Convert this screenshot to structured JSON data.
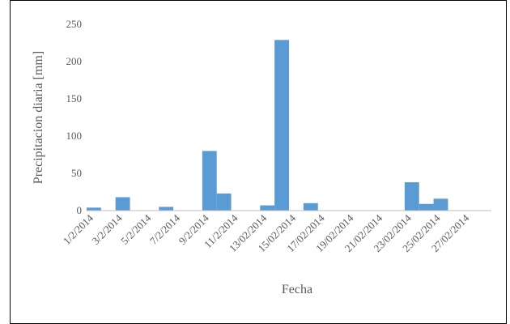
{
  "chart_data": {
    "type": "bar",
    "xlabel": "Fecha",
    "ylabel": "Precipitacion diaria [mm]",
    "ylim": [
      0,
      250
    ],
    "yticks": [
      0,
      50,
      100,
      150,
      200,
      250
    ],
    "grid": false,
    "color": "#5B9BD5",
    "x_start": "1/2/2014",
    "x_end": "28/02/2014",
    "x_tick_labels": [
      "1/2/2014",
      "3/2/2014",
      "5/2/2014",
      "7/2/2014",
      "9/2/2014",
      "11/2/2014",
      "13/02/2014",
      "15/02/2014",
      "17/02/2014",
      "19/02/2014",
      "21/02/2014",
      "23/02/2014",
      "25/02/2014",
      "27/02/2014"
    ],
    "points": [
      {
        "date": "1/2/2014",
        "value": 4
      },
      {
        "date": "3/2/2014",
        "value": 18
      },
      {
        "date": "6/2/2014",
        "value": 5
      },
      {
        "date": "9/2/2014",
        "value": 80
      },
      {
        "date": "10/2/2014",
        "value": 23
      },
      {
        "date": "13/02/2014",
        "value": 7
      },
      {
        "date": "14/02/2014",
        "value": 229
      },
      {
        "date": "16/02/2014",
        "value": 10
      },
      {
        "date": "23/02/2014",
        "value": 38
      },
      {
        "date": "24/02/2014",
        "value": 9
      },
      {
        "date": "25/02/2014",
        "value": 16
      }
    ]
  }
}
